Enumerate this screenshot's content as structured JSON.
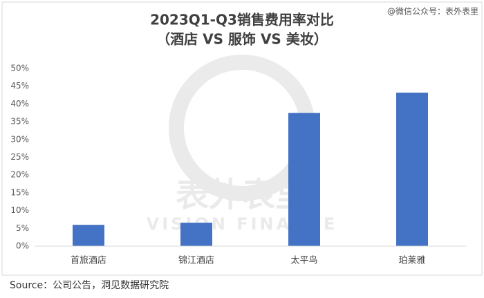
{
  "chart_data": {
    "type": "bar",
    "title": "2023Q1-Q3销售费用率对比",
    "subtitle": "（酒店 VS 服饰 VS 美妆）",
    "watermark": "@微信公众号：表外表里",
    "logo_text": "表外表里",
    "logo_subtext": "VISION FINANCE",
    "source": "Source：公司公告，洞见数据研究院",
    "categories": [
      "首旅酒店",
      "锦江酒店",
      "太平鸟",
      "珀莱雅"
    ],
    "values": [
      6.0,
      6.6,
      37.5,
      43.2
    ],
    "color": "#4472c4",
    "ylim": [
      0,
      50
    ],
    "yticks": [
      {
        "value": 0,
        "label": "0%"
      },
      {
        "value": 5,
        "label": "5%"
      },
      {
        "value": 10,
        "label": "10%"
      },
      {
        "value": 15,
        "label": "15%"
      },
      {
        "value": 20,
        "label": "20%"
      },
      {
        "value": 25,
        "label": "25%"
      },
      {
        "value": 30,
        "label": "30%"
      },
      {
        "value": 35,
        "label": "35%"
      },
      {
        "value": 40,
        "label": "40%"
      },
      {
        "value": 45,
        "label": "45%"
      },
      {
        "value": 50,
        "label": "50%"
      }
    ],
    "grid": false
  }
}
